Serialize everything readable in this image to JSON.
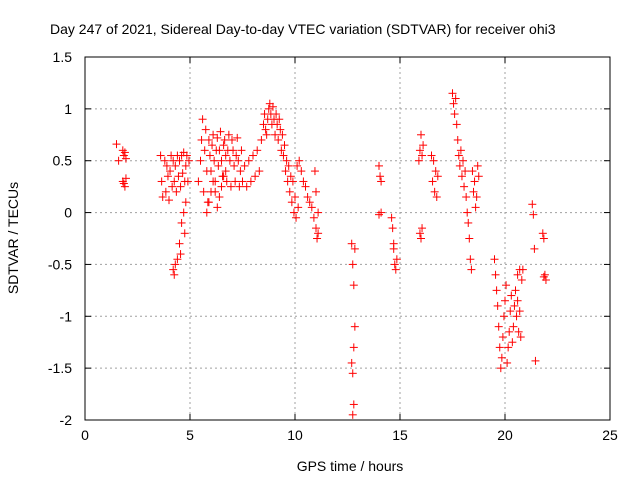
{
  "chart_data": {
    "type": "scatter",
    "title": "Day 247 of 2021, Sidereal Day-to-day VTEC variation (SDTVAR) for receiver ohi3",
    "xlabel": "GPS time / hours",
    "ylabel": "SDTVAR / TECUs",
    "xlim": [
      0,
      25
    ],
    "ylim": [
      -2,
      1.5
    ],
    "xticks": [
      0,
      5,
      10,
      15,
      20,
      25
    ],
    "xtick_labels": [
      "0",
      "5",
      "10",
      "15",
      "20",
      "25"
    ],
    "yticks": [
      -2,
      -1.5,
      -1,
      -0.5,
      0,
      0.5,
      1,
      1.5
    ],
    "ytick_labels": [
      "-2",
      "-1.5",
      "-1",
      "-0.5",
      "0",
      "0.5",
      "1",
      "1.5"
    ],
    "grid": true,
    "marker": "+",
    "color": "#ff0000",
    "series": [
      {
        "name": "SDTVAR",
        "points": [
          [
            1.5,
            0.66
          ],
          [
            1.6,
            0.5
          ],
          [
            1.8,
            0.6
          ],
          [
            1.85,
            0.55
          ],
          [
            1.9,
            0.58
          ],
          [
            1.95,
            0.52
          ],
          [
            1.8,
            0.3
          ],
          [
            1.9,
            0.25
          ],
          [
            1.95,
            0.33
          ],
          [
            1.85,
            0.28
          ],
          [
            3.6,
            0.55
          ],
          [
            3.65,
            0.3
          ],
          [
            3.7,
            0.15
          ],
          [
            3.8,
            0.5
          ],
          [
            3.85,
            0.2
          ],
          [
            3.9,
            0.45
          ],
          [
            3.95,
            0.35
          ],
          [
            4.0,
            0.12
          ],
          [
            4.05,
            0.4
          ],
          [
            4.1,
            0.55
          ],
          [
            4.15,
            0.25
          ],
          [
            4.2,
            0.5
          ],
          [
            4.25,
            0.3
          ],
          [
            4.3,
            0.45
          ],
          [
            4.35,
            0.2
          ],
          [
            4.4,
            0.55
          ],
          [
            4.45,
            0.35
          ],
          [
            4.5,
            0.5
          ],
          [
            4.55,
            0.25
          ],
          [
            4.6,
            0.55
          ],
          [
            4.65,
            0.38
          ],
          [
            4.7,
            0.58
          ],
          [
            4.75,
            0.3
          ],
          [
            4.8,
            0.45
          ],
          [
            4.85,
            0.55
          ],
          [
            4.9,
            0.3
          ],
          [
            4.95,
            0.5
          ],
          [
            4.2,
            -0.55
          ],
          [
            4.25,
            -0.6
          ],
          [
            4.3,
            -0.5
          ],
          [
            4.4,
            -0.45
          ],
          [
            4.5,
            -0.3
          ],
          [
            4.6,
            -0.1
          ],
          [
            4.7,
            0.0
          ],
          [
            4.8,
            0.1
          ],
          [
            4.75,
            -0.2
          ],
          [
            4.55,
            -0.4
          ],
          [
            5.4,
            0.3
          ],
          [
            5.5,
            0.5
          ],
          [
            5.55,
            0.7
          ],
          [
            5.6,
            0.9
          ],
          [
            5.65,
            0.2
          ],
          [
            5.7,
            0.6
          ],
          [
            5.75,
            0.8
          ],
          [
            5.8,
            0.4
          ],
          [
            5.85,
            0.1
          ],
          [
            5.9,
            0.7
          ],
          [
            5.95,
            0.55
          ],
          [
            6.0,
            0.4
          ],
          [
            6.05,
            0.65
          ],
          [
            6.1,
            0.75
          ],
          [
            6.15,
            0.5
          ],
          [
            6.2,
            0.3
          ],
          [
            6.25,
            0.6
          ],
          [
            6.3,
            0.72
          ],
          [
            6.35,
            0.45
          ],
          [
            6.4,
            0.6
          ],
          [
            6.45,
            0.78
          ],
          [
            6.5,
            0.5
          ],
          [
            6.55,
            0.35
          ],
          [
            6.6,
            0.65
          ],
          [
            6.65,
            0.7
          ],
          [
            6.7,
            0.55
          ],
          [
            6.75,
            0.3
          ],
          [
            6.8,
            0.6
          ],
          [
            6.85,
            0.75
          ],
          [
            6.9,
            0.5
          ],
          [
            6.95,
            0.25
          ],
          [
            7.0,
            0.7
          ],
          [
            7.05,
            0.6
          ],
          [
            7.1,
            0.45
          ],
          [
            7.15,
            0.3
          ],
          [
            7.2,
            0.55
          ],
          [
            7.25,
            0.72
          ],
          [
            7.3,
            0.5
          ],
          [
            7.35,
            0.25
          ],
          [
            7.4,
            0.4
          ],
          [
            7.45,
            0.6
          ],
          [
            7.5,
            0.3
          ],
          [
            7.6,
            0.45
          ],
          [
            7.7,
            0.25
          ],
          [
            7.8,
            0.5
          ],
          [
            7.9,
            0.3
          ],
          [
            8.0,
            0.55
          ],
          [
            8.1,
            0.35
          ],
          [
            8.2,
            0.6
          ],
          [
            8.3,
            0.4
          ],
          [
            5.8,
            0.0
          ],
          [
            5.9,
            0.1
          ],
          [
            6.0,
            0.2
          ],
          [
            6.1,
            0.3
          ],
          [
            6.2,
            0.2
          ],
          [
            6.3,
            0.05
          ],
          [
            6.4,
            0.15
          ],
          [
            6.5,
            0.25
          ],
          [
            6.6,
            0.35
          ],
          [
            6.7,
            0.4
          ],
          [
            8.4,
            0.7
          ],
          [
            8.5,
            0.85
          ],
          [
            8.55,
            0.95
          ],
          [
            8.6,
            0.8
          ],
          [
            8.65,
            0.75
          ],
          [
            8.7,
            0.9
          ],
          [
            8.75,
            1.0
          ],
          [
            8.8,
            1.05
          ],
          [
            8.85,
            0.95
          ],
          [
            8.9,
            0.85
          ],
          [
            8.95,
            1.02
          ],
          [
            9.0,
            0.9
          ],
          [
            9.05,
            0.75
          ],
          [
            9.1,
            0.95
          ],
          [
            9.15,
            0.85
          ],
          [
            9.2,
            0.7
          ],
          [
            9.25,
            0.9
          ],
          [
            9.3,
            0.8
          ],
          [
            9.35,
            0.6
          ],
          [
            9.4,
            0.75
          ],
          [
            9.45,
            0.55
          ],
          [
            9.5,
            0.65
          ],
          [
            9.55,
            0.4
          ],
          [
            9.6,
            0.5
          ],
          [
            9.65,
            0.3
          ],
          [
            9.7,
            0.45
          ],
          [
            9.75,
            0.2
          ],
          [
            9.8,
            0.35
          ],
          [
            9.85,
            0.1
          ],
          [
            9.9,
            0.3
          ],
          [
            9.95,
            0.0
          ],
          [
            10.0,
            0.15
          ],
          [
            10.05,
            -0.05
          ],
          [
            10.1,
            0.45
          ],
          [
            10.15,
            0.05
          ],
          [
            10.2,
            0.5
          ],
          [
            10.3,
            0.4
          ],
          [
            10.4,
            0.3
          ],
          [
            10.5,
            0.25
          ],
          [
            10.6,
            0.15
          ],
          [
            10.7,
            0.1
          ],
          [
            10.8,
            0.05
          ],
          [
            10.9,
            -0.05
          ],
          [
            11.0,
            -0.15
          ],
          [
            11.05,
            -0.25
          ],
          [
            11.1,
            -0.2
          ],
          [
            10.95,
            0.4
          ],
          [
            11.0,
            0.2
          ],
          [
            11.1,
            0.0
          ],
          [
            12.7,
            -0.3
          ],
          [
            12.75,
            -0.5
          ],
          [
            12.8,
            -0.7
          ],
          [
            12.85,
            -0.35
          ],
          [
            12.7,
            -1.45
          ],
          [
            12.75,
            -1.55
          ],
          [
            12.8,
            -1.85
          ],
          [
            12.85,
            -1.1
          ],
          [
            12.8,
            -1.3
          ],
          [
            12.75,
            -1.95
          ],
          [
            14.0,
            0.45
          ],
          [
            14.05,
            0.35
          ],
          [
            14.1,
            0.3
          ],
          [
            14.0,
            -0.02
          ],
          [
            14.1,
            0.0
          ],
          [
            14.6,
            -0.05
          ],
          [
            14.65,
            -0.15
          ],
          [
            14.7,
            -0.3
          ],
          [
            14.75,
            -0.5
          ],
          [
            14.8,
            -0.55
          ],
          [
            14.85,
            -0.45
          ],
          [
            14.7,
            -0.35
          ],
          [
            15.9,
            0.5
          ],
          [
            15.95,
            0.6
          ],
          [
            16.0,
            0.75
          ],
          [
            16.05,
            0.55
          ],
          [
            16.1,
            0.65
          ],
          [
            15.95,
            -0.2
          ],
          [
            16.0,
            -0.25
          ],
          [
            16.05,
            -0.15
          ],
          [
            16.5,
            0.55
          ],
          [
            16.55,
            0.3
          ],
          [
            16.6,
            0.5
          ],
          [
            16.65,
            0.2
          ],
          [
            16.7,
            0.4
          ],
          [
            16.75,
            0.15
          ],
          [
            16.8,
            0.35
          ],
          [
            17.5,
            1.15
          ],
          [
            17.55,
            1.05
          ],
          [
            17.6,
            0.95
          ],
          [
            17.65,
            1.1
          ],
          [
            17.7,
            0.85
          ],
          [
            17.75,
            0.7
          ],
          [
            17.8,
            0.55
          ],
          [
            17.85,
            0.45
          ],
          [
            17.9,
            0.6
          ],
          [
            17.95,
            0.35
          ],
          [
            18.0,
            0.5
          ],
          [
            18.05,
            0.25
          ],
          [
            18.1,
            0.4
          ],
          [
            18.15,
            0.15
          ],
          [
            18.2,
            0.0
          ],
          [
            18.25,
            -0.1
          ],
          [
            18.3,
            -0.25
          ],
          [
            18.35,
            -0.45
          ],
          [
            18.4,
            -0.55
          ],
          [
            18.45,
            0.4
          ],
          [
            18.5,
            0.2
          ],
          [
            18.55,
            0.3
          ],
          [
            18.6,
            0.05
          ],
          [
            18.65,
            0.15
          ],
          [
            18.7,
            0.45
          ],
          [
            18.75,
            0.35
          ],
          [
            19.5,
            -0.45
          ],
          [
            19.55,
            -0.6
          ],
          [
            19.6,
            -0.75
          ],
          [
            19.65,
            -0.9
          ],
          [
            19.7,
            -1.1
          ],
          [
            19.75,
            -1.3
          ],
          [
            19.8,
            -1.5
          ],
          [
            19.85,
            -1.4
          ],
          [
            19.9,
            -1.2
          ],
          [
            19.95,
            -1.0
          ],
          [
            20.0,
            -0.85
          ],
          [
            20.05,
            -0.7
          ],
          [
            20.1,
            -1.45
          ],
          [
            20.15,
            -1.3
          ],
          [
            20.2,
            -1.15
          ],
          [
            20.25,
            -0.95
          ],
          [
            20.3,
            -0.8
          ],
          [
            20.35,
            -1.25
          ],
          [
            20.4,
            -1.1
          ],
          [
            20.45,
            -0.9
          ],
          [
            20.5,
            -0.75
          ],
          [
            20.55,
            -1.0
          ],
          [
            20.6,
            -0.85
          ],
          [
            20.65,
            -1.15
          ],
          [
            20.7,
            -0.95
          ],
          [
            20.75,
            -1.2
          ],
          [
            20.8,
            -0.65
          ],
          [
            20.85,
            -0.55
          ],
          [
            20.6,
            -0.6
          ],
          [
            20.7,
            -0.55
          ],
          [
            21.3,
            0.08
          ],
          [
            21.35,
            -0.02
          ],
          [
            21.4,
            -0.35
          ],
          [
            21.45,
            -1.43
          ],
          [
            21.8,
            -0.2
          ],
          [
            21.85,
            -0.25
          ],
          [
            21.9,
            -0.6
          ],
          [
            21.95,
            -0.65
          ],
          [
            21.85,
            -0.62
          ]
        ]
      }
    ]
  }
}
